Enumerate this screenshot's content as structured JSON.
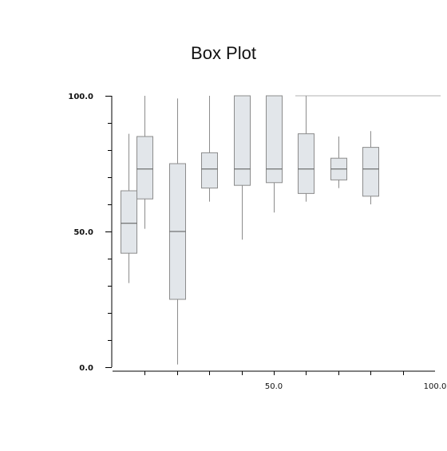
{
  "chart_data": {
    "type": "box",
    "title": "Box Plot",
    "xlabel": "",
    "ylabel": "",
    "xlim": [
      0.0,
      100.0
    ],
    "ylim": [
      0.0,
      100.0
    ],
    "y_ticks": [
      0.0,
      50.0,
      100.0
    ],
    "y_tick_labels": [
      "0.0",
      "50.0",
      "100.0"
    ],
    "x_ticks": [
      50.0,
      100.0
    ],
    "x_tick_labels": [
      "50.0",
      "100.0"
    ],
    "reference_line_y": 100.0,
    "colors": {
      "box_fill": "#e2e6ea",
      "box_stroke": "#8c8c8c",
      "median": "#555555",
      "axis": "#000000",
      "ref_line": "#b0b0b0"
    },
    "boxes": [
      {
        "x": 5,
        "whisker_low": 31,
        "q1": 42,
        "median": 53,
        "q3": 65,
        "whisker_high": 86
      },
      {
        "x": 10,
        "whisker_low": 51,
        "q1": 62,
        "median": 73,
        "q3": 85,
        "whisker_high": 100
      },
      {
        "x": 20,
        "whisker_low": 1,
        "q1": 25,
        "median": 50,
        "q3": 75,
        "whisker_high": 99
      },
      {
        "x": 30,
        "whisker_low": 61,
        "q1": 66,
        "median": 73,
        "q3": 79,
        "whisker_high": 100
      },
      {
        "x": 40,
        "whisker_low": 47,
        "q1": 67,
        "median": 73,
        "q3": 100,
        "whisker_high": 100
      },
      {
        "x": 50,
        "whisker_low": 57,
        "q1": 68,
        "median": 73,
        "q3": 100,
        "whisker_high": 100
      },
      {
        "x": 60,
        "whisker_low": 61,
        "q1": 64,
        "median": 73,
        "q3": 86,
        "whisker_high": 100
      },
      {
        "x": 70,
        "whisker_low": 66,
        "q1": 69,
        "median": 73,
        "q3": 77,
        "whisker_high": 85
      },
      {
        "x": 80,
        "whisker_low": 60,
        "q1": 63,
        "median": 73,
        "q3": 81,
        "whisker_high": 87
      }
    ]
  }
}
